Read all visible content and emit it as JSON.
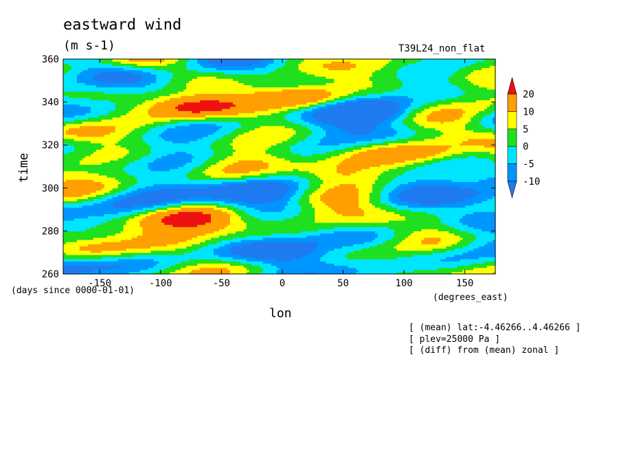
{
  "chart_data": {
    "type": "heatmap",
    "title": "eastward wind",
    "units": "(m s-1)",
    "run_label": "T39L24_non_flat",
    "xlabel": "lon",
    "ylabel": "time",
    "x_units": "(degrees_east)",
    "y_units": "(days since 0000-01-01)",
    "xlim": [
      -180,
      175
    ],
    "ylim": [
      260,
      360
    ],
    "x_ticks": [
      -150,
      -100,
      -50,
      0,
      50,
      100,
      150
    ],
    "y_ticks": [
      260,
      280,
      300,
      320,
      340,
      360
    ],
    "colorbar": {
      "levels": [
        -10,
        -5,
        0,
        5,
        10,
        20
      ],
      "colors": [
        "#1e7bf0",
        "#0096ff",
        "#00e5ff",
        "#1fe01f",
        "#ffff00",
        "#ff9f00",
        "#ee1111"
      ]
    },
    "features": [
      {
        "lon": -70,
        "time": 338,
        "value": 22
      },
      {
        "lon": -80,
        "time": 286,
        "value": 20
      },
      {
        "lon": 20,
        "time": 342,
        "value": 20
      },
      {
        "lon": 40,
        "time": 307,
        "value": 12
      },
      {
        "lon": 120,
        "time": 316,
        "value": 12
      },
      {
        "lon": -160,
        "time": 326,
        "value": 12
      },
      {
        "lon": -160,
        "time": 272,
        "value": 12
      },
      {
        "lon": 80,
        "time": 336,
        "value": -12
      },
      {
        "lon": -30,
        "time": 298,
        "value": -10
      },
      {
        "lon": 0,
        "time": 270,
        "value": -10
      },
      {
        "lon": 150,
        "time": 296,
        "value": -10
      },
      {
        "lon": -120,
        "time": 350,
        "value": -8
      }
    ],
    "notes": [
      "[ (mean) lat:-4.46266..4.46266 ]",
      "[ plev=25000 Pa ]",
      "[ (diff) from (mean) zonal ]"
    ]
  }
}
